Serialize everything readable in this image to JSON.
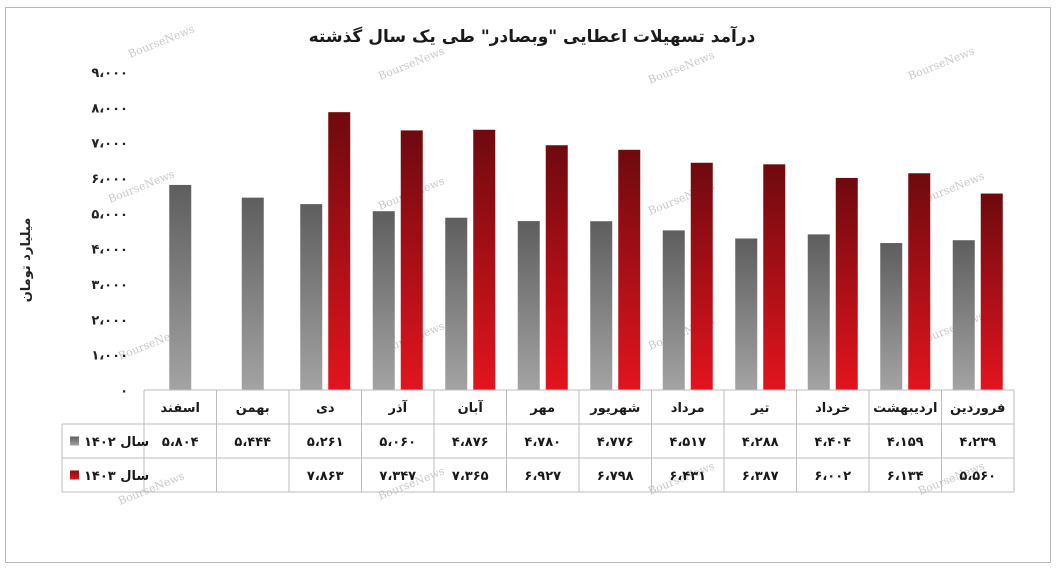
{
  "chart_data": {
    "type": "bar",
    "title": "درآمد تسهیلات اعطایی \"وبصادر\" طی یک سال گذشته",
    "ylabel": "میلیارد تومان",
    "ylim": [
      0,
      9000
    ],
    "yticks": [
      "۰",
      "۱،۰۰۰",
      "۲،۰۰۰",
      "۳،۰۰۰",
      "۴،۰۰۰",
      "۵،۰۰۰",
      "۶،۰۰۰",
      "۷،۰۰۰",
      "۸،۰۰۰",
      "۹،۰۰۰"
    ],
    "ytick_values": [
      0,
      1000,
      2000,
      3000,
      4000,
      5000,
      6000,
      7000,
      8000,
      9000
    ],
    "categories": [
      "فروردین",
      "اردیبهشت",
      "خرداد",
      "تیر",
      "مرداد",
      "شهریور",
      "مهر",
      "آبان",
      "آذر",
      "دی",
      "بهمن",
      "اسفند"
    ],
    "series": [
      {
        "name": "سال ۱۴۰۲",
        "color": "#7a7a7a",
        "values": [
          4239,
          4159,
          4404,
          4288,
          4517,
          4776,
          4780,
          4876,
          5060,
          5261,
          5444,
          5804
        ],
        "labels": [
          "۴،۲۳۹",
          "۴،۱۵۹",
          "۴،۴۰۴",
          "۴،۲۸۸",
          "۴،۵۱۷",
          "۴،۷۷۶",
          "۴،۷۸۰",
          "۴،۸۷۶",
          "۵،۰۶۰",
          "۵،۲۶۱",
          "۵،۴۴۴",
          "۵،۸۰۴"
        ]
      },
      {
        "name": "سال ۱۴۰۳",
        "color": "#c8101a",
        "values": [
          5560,
          6134,
          6002,
          6387,
          6431,
          6798,
          6927,
          7365,
          7347,
          7863,
          null,
          null
        ],
        "labels": [
          "۵،۵۶۰",
          "۶،۱۳۴",
          "۶،۰۰۲",
          "۶،۳۸۷",
          "۶،۴۳۱",
          "۶،۷۹۸",
          "۶،۹۲۷",
          "۷،۳۶۵",
          "۷،۳۴۷",
          "۷،۸۶۳",
          "",
          ""
        ]
      }
    ],
    "legend": "data-table-left",
    "grid": false,
    "watermark": "BourseNews"
  }
}
